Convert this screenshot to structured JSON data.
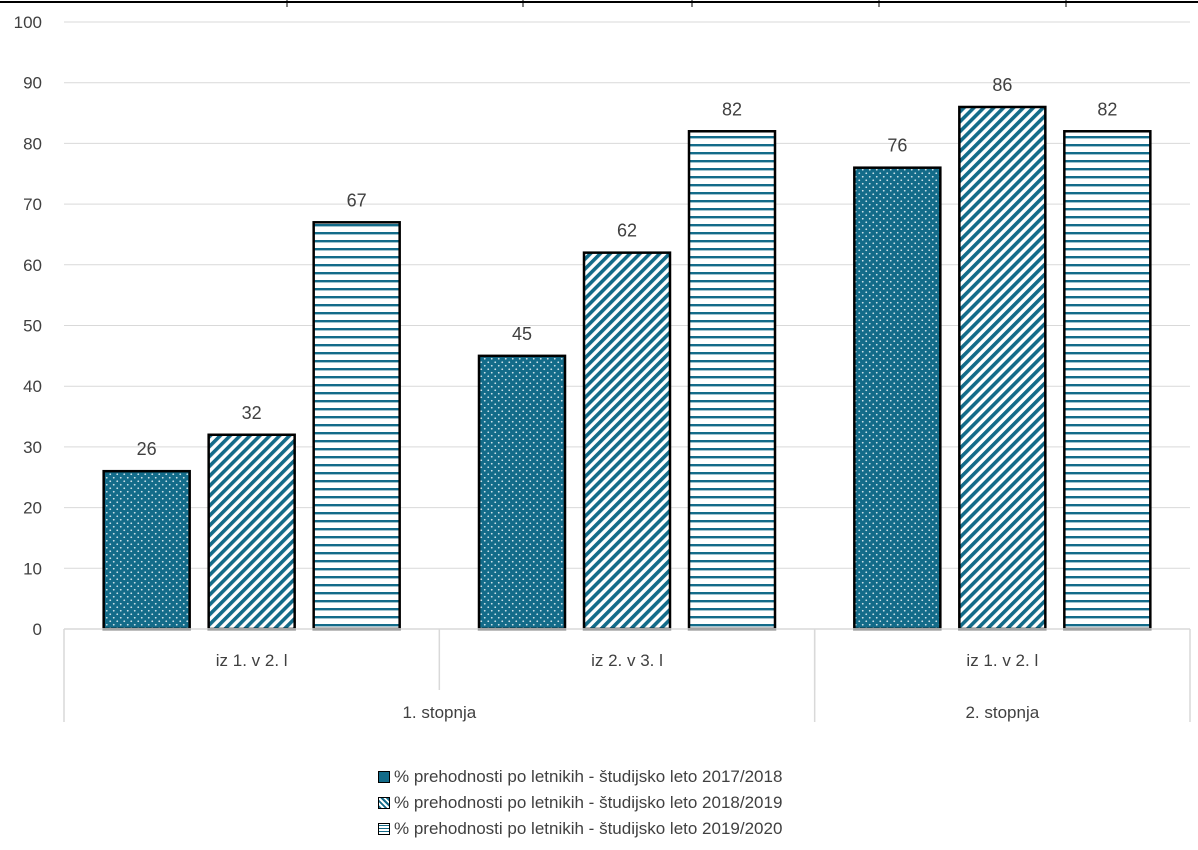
{
  "chart_data": {
    "type": "bar",
    "categories": [
      "iz 1. v 2. l",
      "iz 2. v 3. l",
      "iz 1. v 2. l"
    ],
    "groups": [
      {
        "label": "1. stopnja",
        "categories": [
          "iz 1. v 2. l",
          "iz 2. v 3. l"
        ]
      },
      {
        "label": "2. stopnja",
        "categories": [
          "iz 1. v 2. l"
        ]
      }
    ],
    "series": [
      {
        "name": "% prehodnosti po letnikih - študijsko leto 2017/2018",
        "values": [
          26,
          45,
          76
        ],
        "color": "#136b89",
        "pattern": "dots"
      },
      {
        "name": "% prehodnosti po letnikih - študijsko leto 2018/2019",
        "values": [
          32,
          62,
          86
        ],
        "color": "#136b89",
        "pattern": "diagonal"
      },
      {
        "name": "% prehodnosti po letnikih - študijsko leto 2019/2020",
        "values": [
          67,
          82,
          82
        ],
        "color": "#136b89",
        "pattern": "horizontal"
      }
    ],
    "ylim": [
      0,
      100
    ],
    "yticks": [
      0,
      10,
      20,
      30,
      40,
      50,
      60,
      70,
      80,
      90,
      100
    ],
    "grid": true,
    "legend_position": "bottom"
  }
}
